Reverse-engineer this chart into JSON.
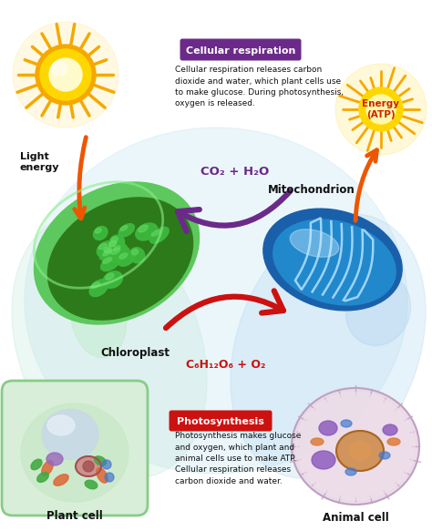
{
  "bg_color": "#ffffff",
  "cellular_resp_label": "Cellular respiration",
  "cellular_resp_text": "Cellular respiration releases carbon\ndioxide and water, which plant cells use\nto make glucose. During photosynthesis,\noxygen is released.",
  "photosyn_label": "Photosynthesis",
  "photosyn_text": "Photosynthesis makes glucose\nand oxygen, which plant and\nanimal cells use to make ATP.\nCellular respiration releases\ncarbon dioxide and water.",
  "co2_label": "CO₂ + H₂O",
  "glucose_label": "C₆H₁₂O₆ + O₂",
  "energy_label": "Energy\n(ATP)",
  "light_energy_label": "Light\nenergy",
  "chloroplast_label": "Chloroplast",
  "mitochondrion_label": "Mitochondrion",
  "plant_cell_label": "Plant cell",
  "animal_cell_label": "Animal cell",
  "purple_color": "#6B2A8A",
  "red_color": "#CC1111",
  "orange_color": "#EE5500",
  "sun_outer": "#F5A800",
  "sun_inner": "#FFEE44",
  "sun_core": "#FFFBCC",
  "atp_yellow": "#FFD700",
  "green_outer": "#3BA83B",
  "green_inner": "#2D7A2D",
  "green_thylakoid": "#4CC44C",
  "green_light": "#88DD88",
  "blue_outer": "#1A5FAA",
  "blue_inner": "#3388CC",
  "blue_crista": "#AADDFF",
  "blue_sheen": "#CCEEFF",
  "bg_circle": "#C8E8F4",
  "label_purple_bg": "#6B2A8A",
  "label_red_bg": "#CC1111"
}
